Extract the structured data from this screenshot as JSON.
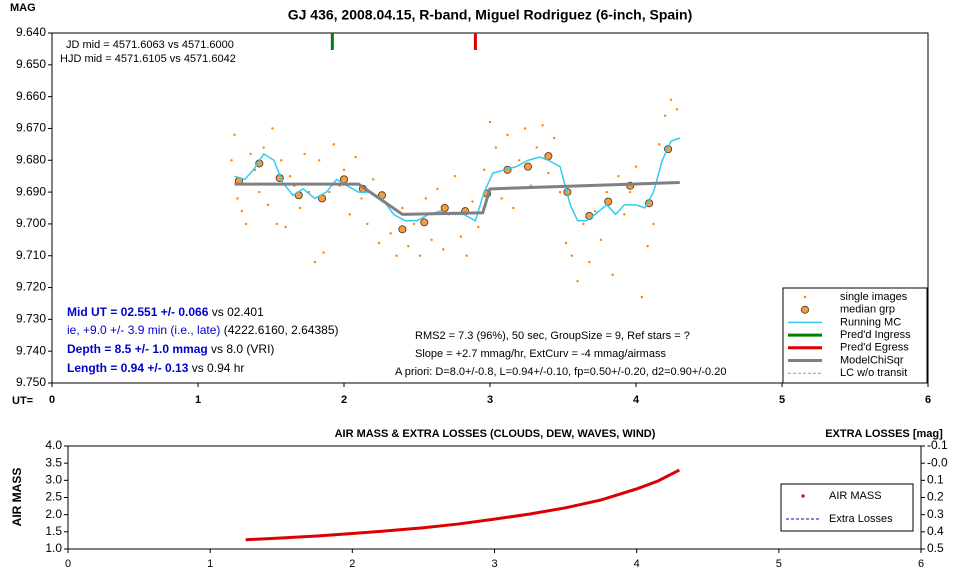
{
  "chart_data": [
    {
      "type": "scatter",
      "title": "GJ 436, 2008.04.15, R-band, Miguel Rodriguez (6-inch, Spain)",
      "ylabel": "MAG",
      "xlabel": "UT=",
      "xlim": [
        0,
        6
      ],
      "xticks": [
        0,
        1,
        2,
        3,
        4,
        5,
        6
      ],
      "ylim": [
        9.64,
        9.75
      ],
      "y_inverted": true,
      "yticks": [
        {
          "value": 9.64,
          "label": "9.640"
        },
        {
          "value": 9.65,
          "label": "9.650"
        },
        {
          "value": 9.66,
          "label": "9.660"
        },
        {
          "value": 9.67,
          "label": "9.670"
        },
        {
          "value": 9.68,
          "label": "9.680"
        },
        {
          "value": 9.69,
          "label": "9.690"
        },
        {
          "value": 9.7,
          "label": "9.700"
        },
        {
          "value": 9.71,
          "label": "9.710"
        },
        {
          "value": 9.72,
          "label": "9.720"
        },
        {
          "value": 9.73,
          "label": "9.730"
        },
        {
          "value": 9.74,
          "label": "9.740"
        },
        {
          "value": 9.75,
          "label": "9.750"
        }
      ],
      "grid": false,
      "legend": "lower right",
      "annotations": {
        "jd": "JD mid = 4571.6063 vs 4571.6000",
        "hjd": "HJD mid = 4571.6105 vs 4571.6042",
        "mid_ut": [
          "Mid UT = 02.551 +/- 0.066",
          " vs 02.401"
        ],
        "ie": [
          "ie, +9.0 +/- 3.9 min (i.e., late)",
          " (4222.6160, 2.64385)"
        ],
        "depth": [
          "Depth = 8.5 +/- 1.0 mmag",
          " vs 8.0 (VRI)"
        ],
        "length": [
          "Length = 0.94 +/- 0.13",
          "  vs 0.94 hr"
        ],
        "rms": "RMS2 = 7.3 (96%), 50 sec, GroupSize = 9, Ref stars = ?",
        "slope": "Slope = +2.7 mmag/hr, ExtCurv = -4 mmag/airmass",
        "apriori": "A priori: D=8.0+/-0.8, L=0.94+/-0.10, fp=0.50+/-0.20, d2=0.90+/-0.20"
      },
      "series": [
        {
          "name": "single images",
          "color": "#ff8000",
          "style": "dots",
          "x": [
            1.23,
            1.25,
            1.27,
            1.3,
            1.33,
            1.36,
            1.39,
            1.42,
            1.45,
            1.48,
            1.51,
            1.54,
            1.57,
            1.6,
            1.63,
            1.66,
            1.7,
            1.73,
            1.76,
            1.8,
            1.83,
            1.86,
            1.9,
            1.93,
            1.97,
            2.0,
            2.04,
            2.08,
            2.12,
            2.16,
            2.2,
            2.24,
            2.28,
            2.32,
            2.36,
            2.4,
            2.44,
            2.48,
            2.52,
            2.56,
            2.6,
            2.64,
            2.68,
            2.72,
            2.76,
            2.8,
            2.84,
            2.88,
            2.92,
            2.96,
            3.0,
            3.04,
            3.08,
            3.12,
            3.16,
            3.2,
            3.24,
            3.28,
            3.32,
            3.36,
            3.4,
            3.44,
            3.48,
            3.52,
            3.56,
            3.6,
            3.64,
            3.68,
            3.72,
            3.76,
            3.8,
            3.84,
            3.88,
            3.92,
            3.96,
            4.0,
            4.04,
            4.08,
            4.12,
            4.16,
            4.2,
            4.24,
            4.28
          ],
          "values": [
            9.68,
            9.672,
            9.692,
            9.696,
            9.7,
            9.678,
            9.683,
            9.69,
            9.676,
            9.694,
            9.67,
            9.7,
            9.68,
            9.701,
            9.685,
            9.688,
            9.695,
            9.678,
            9.69,
            9.712,
            9.68,
            9.709,
            9.69,
            9.675,
            9.688,
            9.683,
            9.697,
            9.679,
            9.692,
            9.7,
            9.686,
            9.706,
            9.693,
            9.703,
            9.71,
            9.695,
            9.707,
            9.7,
            9.71,
            9.692,
            9.705,
            9.689,
            9.708,
            9.697,
            9.685,
            9.704,
            9.71,
            9.693,
            9.701,
            9.683,
            9.668,
            9.676,
            9.692,
            9.672,
            9.695,
            9.68,
            9.67,
            9.688,
            9.676,
            9.669,
            9.684,
            9.673,
            9.69,
            9.706,
            9.71,
            9.718,
            9.7,
            9.712,
            9.696,
            9.705,
            9.69,
            9.716,
            9.685,
            9.697,
            9.69,
            9.682,
            9.723,
            9.707,
            9.7,
            9.675,
            9.666,
            9.661,
            9.664
          ]
        },
        {
          "name": "median grp",
          "color": "#ff9933",
          "style": "circles",
          "x": [
            1.28,
            1.42,
            1.56,
            1.69,
            1.85,
            2.0,
            2.13,
            2.26,
            2.4,
            2.55,
            2.69,
            2.83,
            2.98,
            3.12,
            3.26,
            3.4,
            3.53,
            3.68,
            3.81,
            3.96,
            4.09,
            4.22
          ],
          "values": [
            9.6865,
            9.681,
            9.6856,
            9.691,
            9.692,
            9.686,
            9.689,
            9.691,
            9.7017,
            9.6995,
            9.695,
            9.696,
            9.6905,
            9.683,
            9.682,
            9.6787,
            9.69,
            9.6975,
            9.693,
            9.688,
            9.6935,
            9.6765
          ]
        },
        {
          "name": "Running MC",
          "color": "#33ccee",
          "style": "line",
          "x": [
            1.25,
            1.32,
            1.38,
            1.45,
            1.52,
            1.58,
            1.65,
            1.72,
            1.8,
            1.88,
            1.95,
            2.02,
            2.1,
            2.18,
            2.26,
            2.34,
            2.42,
            2.5,
            2.58,
            2.66,
            2.74,
            2.82,
            2.9,
            2.96,
            3.02,
            3.1,
            3.18,
            3.26,
            3.34,
            3.4,
            3.48,
            3.55,
            3.6,
            3.66,
            3.72,
            3.8,
            3.86,
            3.92,
            4.0,
            4.06,
            4.12,
            4.18,
            4.24,
            4.3
          ],
          "values": [
            9.685,
            9.686,
            9.683,
            9.678,
            9.68,
            9.687,
            9.691,
            9.689,
            9.692,
            9.69,
            9.686,
            9.688,
            9.69,
            9.69,
            9.692,
            9.697,
            9.699,
            9.699,
            9.697,
            9.696,
            9.697,
            9.697,
            9.699,
            9.69,
            9.684,
            9.683,
            9.682,
            9.68,
            9.679,
            9.68,
            9.682,
            9.694,
            9.699,
            9.699,
            9.697,
            9.694,
            9.697,
            9.694,
            9.694,
            9.695,
            9.69,
            9.68,
            9.674,
            9.673
          ]
        },
        {
          "name": "Pred'd Ingress",
          "color": "#008000",
          "style": "vline",
          "x": [
            1.92
          ]
        },
        {
          "name": "Pred'd Egress",
          "color": "#e00000",
          "style": "vline",
          "x": [
            2.9
          ]
        },
        {
          "name": "ModelChiSqr",
          "color": "#808080",
          "style": "thick",
          "x": [
            1.25,
            2.1,
            2.4,
            2.95,
            3.0,
            4.3
          ],
          "values": [
            9.6875,
            9.6875,
            9.697,
            9.6965,
            9.689,
            9.687
          ]
        },
        {
          "name": "LC w/o transit",
          "color": "#999999",
          "style": "dashed",
          "x": [],
          "values": []
        }
      ]
    },
    {
      "type": "line",
      "title": "AIR MASS & EXTRA LOSSES (CLOUDS, DEW, WAVES, WIND)",
      "ylabel": "AIR MASS",
      "y2label": "EXTRA LOSSES [mag]",
      "xlim": [
        0,
        6
      ],
      "xticks": [
        0,
        1,
        2,
        3,
        4,
        5,
        6
      ],
      "ylim": [
        1.0,
        4.0
      ],
      "yticks": [
        {
          "value": 1,
          "label": "1.0"
        },
        {
          "value": 1.5,
          "label": "1.5"
        },
        {
          "value": 2,
          "label": "2.0"
        },
        {
          "value": 2.5,
          "label": "2.5"
        },
        {
          "value": 3,
          "label": "3.0"
        },
        {
          "value": 3.5,
          "label": "3.5"
        },
        {
          "value": 4,
          "label": "4.0"
        }
      ],
      "y2lim": [
        -0.1,
        0.5
      ],
      "y2_inverted": true,
      "y2ticks": [
        -0.1,
        {
          "value": 0,
          "label": "-0.0"
        },
        0.1,
        0.2,
        0.3,
        0.4,
        0.5
      ],
      "legend": "right",
      "series": [
        {
          "name": "AIR MASS",
          "color": "#dd0000",
          "style": "thick",
          "x": [
            1.25,
            1.5,
            1.75,
            2.0,
            2.25,
            2.5,
            2.75,
            3.0,
            3.25,
            3.5,
            3.75,
            4.0,
            4.15,
            4.3
          ],
          "values": [
            1.27,
            1.32,
            1.38,
            1.45,
            1.53,
            1.62,
            1.73,
            1.87,
            2.02,
            2.2,
            2.43,
            2.75,
            2.98,
            3.3
          ]
        },
        {
          "name": "Extra Losses",
          "color": "#0000cc",
          "style": "dashed",
          "axis": "y2",
          "x": [],
          "values": []
        }
      ]
    }
  ]
}
